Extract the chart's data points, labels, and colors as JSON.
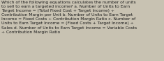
{
  "lines": [
    "Which of the following equations calculates the number of units",
    "to sell to earn a targeted income? a. Number of Units to Earn",
    "Target Income = (Total Fixed Cost + Target Income) ÷",
    "Contribution Margin per Unit b. Number of Units to Earn Target",
    "Income = Fixed Costs ÷ Contribution Margin Ratio c. Number of",
    "Units to Earn Target Income = (Fixed Costs + Target Income) ÷",
    "Sales d. Number of Units to Earn Target Income = Variable Costs",
    "÷ Contribution Margin Ratio"
  ],
  "background_color": "#c8c2b2",
  "text_color": "#1a1a1a",
  "font_size": 4.3,
  "fig_width": 2.35,
  "fig_height": 0.88,
  "dpi": 100
}
